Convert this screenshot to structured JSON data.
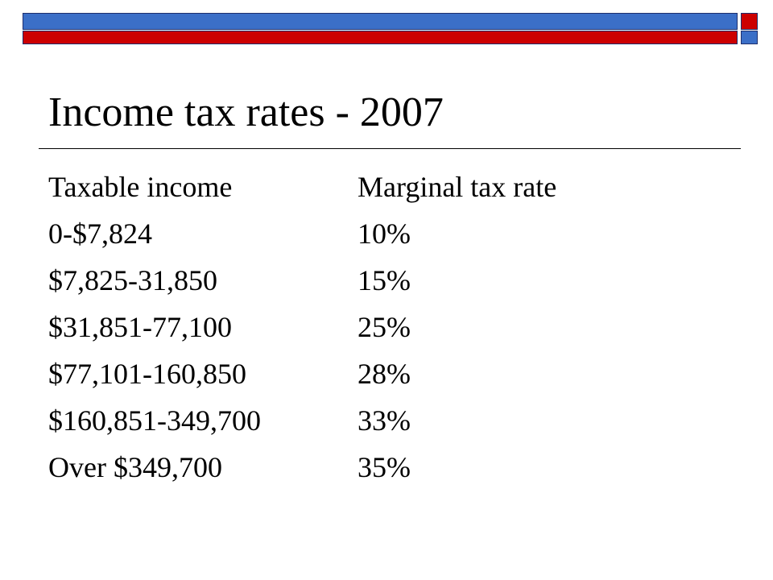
{
  "slide": {
    "title": "Income tax rates - 2007",
    "colors": {
      "band_blue": "#3b6fc7",
      "band_red": "#cc0000",
      "text": "#000000",
      "background": "#ffffff"
    },
    "table": {
      "headers": [
        "Taxable income",
        "Marginal tax rate"
      ],
      "rows": [
        {
          "income": "0-$7,824",
          "rate": "10%"
        },
        {
          "income": "$7,825-31,850",
          "rate": "15%"
        },
        {
          "income": "$31,851-77,100",
          "rate": "25%"
        },
        {
          "income": "$77,101-160,850",
          "rate": "28%"
        },
        {
          "income": "$160,851-349,700",
          "rate": "33%"
        },
        {
          "income": "Over $349,700",
          "rate": "35%"
        }
      ]
    }
  }
}
